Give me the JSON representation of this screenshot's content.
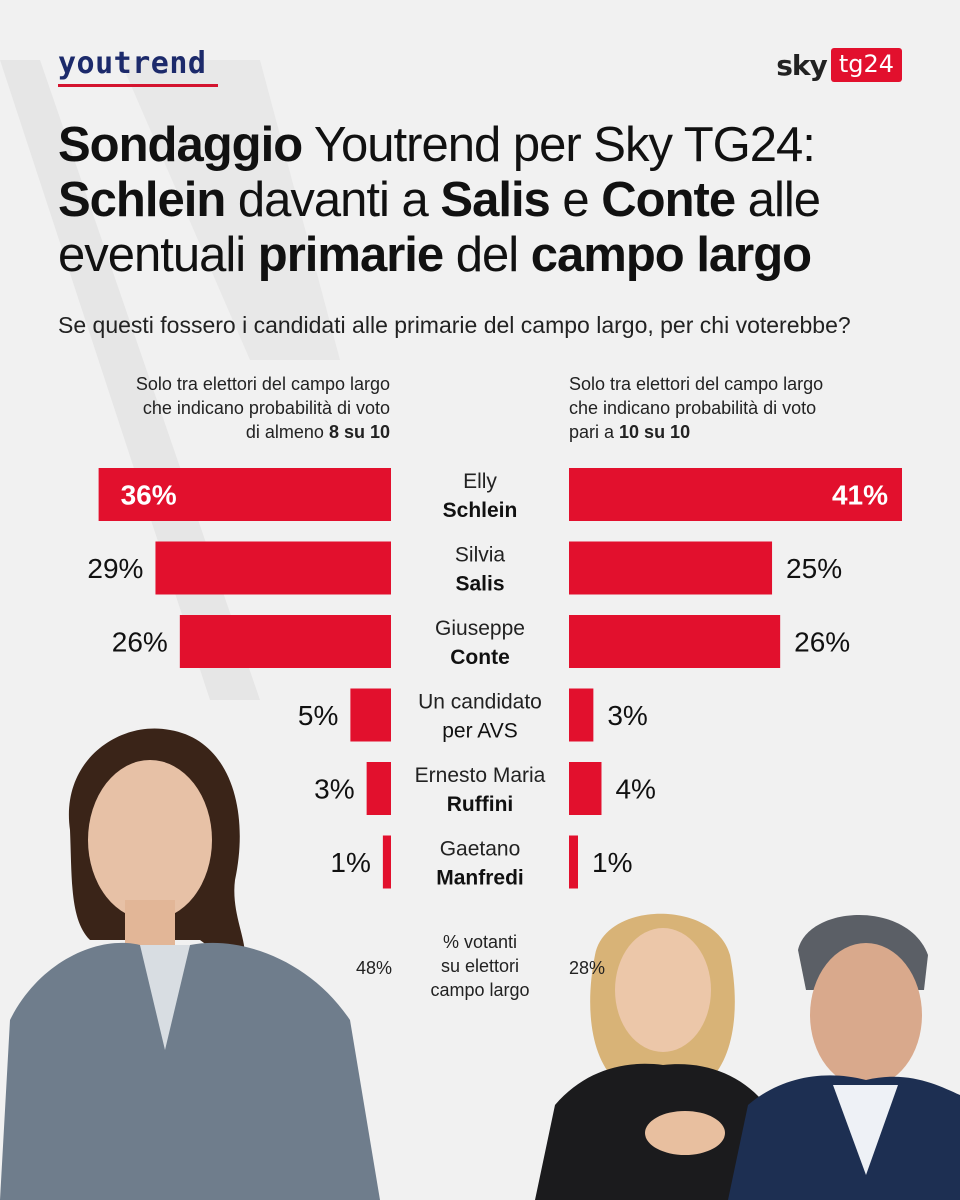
{
  "brand": {
    "left_logo": "youtrend",
    "right_logo_sky": "sky",
    "right_logo_tg": "tg24"
  },
  "title": {
    "p1": "Sondaggio",
    "p2": " Youtrend per Sky TG24:",
    "p3": "Schlein",
    "p4": " davanti a ",
    "p5": "Salis",
    "p6": " e ",
    "p7": "Conte",
    "p8": " alle",
    "p9": "eventuali ",
    "p10": "primarie",
    "p11": " del ",
    "p12": "campo largo"
  },
  "subtitle": "Se questi fossero i candidati alle primarie del campo largo, per chi voterebbe?",
  "notes": {
    "left_l1": "Solo tra elettori del campo largo",
    "left_l2": "che indicano probabilità  di voto",
    "left_l3_a": "di almeno ",
    "left_l3_b": "8 su 10",
    "right_l1": "Solo tra elettori del campo largo",
    "right_l2": "che indicano probabilità di voto",
    "right_l3_a": "pari a ",
    "right_l3_b": "10 su 10"
  },
  "chart_data": {
    "type": "bar",
    "orientation": "horizontal-butterfly",
    "categories": [
      {
        "first": "Elly",
        "last": "Schlein",
        "last_bold": true
      },
      {
        "first": "Silvia",
        "last": "Salis",
        "last_bold": true
      },
      {
        "first": "Giuseppe",
        "last": "Conte",
        "last_bold": true
      },
      {
        "first": "Un candidato",
        "last": "per AVS",
        "last_bold": false
      },
      {
        "first": "Ernesto Maria",
        "last": "Ruffini",
        "last_bold": true
      },
      {
        "first": "Gaetano",
        "last": "Manfredi",
        "last_bold": true
      }
    ],
    "series": [
      {
        "name": "Probabilità di voto di almeno 8 su 10",
        "values": [
          36,
          29,
          26,
          5,
          3,
          1
        ],
        "labels": [
          "36%",
          "29%",
          "26%",
          "5%",
          "3%",
          "1%"
        ]
      },
      {
        "name": "Probabilità di voto pari a 10 su 10",
        "values": [
          41,
          25,
          26,
          3,
          4,
          1
        ],
        "labels": [
          "41%",
          "25%",
          "26%",
          "3%",
          "4%",
          "1%"
        ]
      }
    ],
    "xlim": [
      0,
      41
    ],
    "bar_color": "#e2102d"
  },
  "footer": {
    "label_l1": "% votanti",
    "label_l2": "su elettori",
    "label_l3": "campo largo",
    "left_value": "48%",
    "right_value": "28%"
  }
}
